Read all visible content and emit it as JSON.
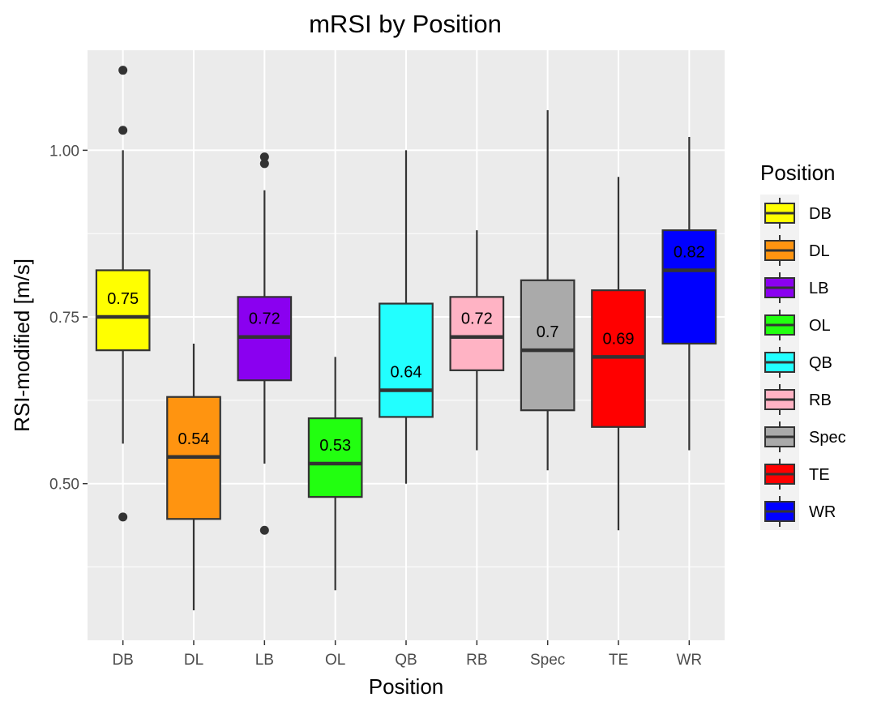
{
  "chart_data": {
    "type": "box",
    "title": "mRSI by Position",
    "xlabel": "Position",
    "ylabel": "RSI-modified [m/s]",
    "ylim": [
      0.265,
      1.15
    ],
    "yticks": [
      0.5,
      0.75,
      1.0
    ],
    "ytick_labels": [
      "0.50",
      "0.75",
      "1.00"
    ],
    "grid": true,
    "legend": {
      "title": "Position",
      "placement": "right"
    },
    "categories": [
      "DB",
      "DL",
      "LB",
      "OL",
      "QB",
      "RB",
      "Spec",
      "TE",
      "WR"
    ],
    "boxes": [
      {
        "name": "DB",
        "color": "#FFFF00",
        "whisker_low": 0.56,
        "q1": 0.7,
        "median": 0.75,
        "q3": 0.82,
        "whisker_high": 1.0,
        "outliers": [
          1.12,
          1.03,
          0.45
        ],
        "median_label": "0.75"
      },
      {
        "name": "DL",
        "color": "#FF9410",
        "whisker_low": 0.31,
        "q1": 0.447,
        "median": 0.54,
        "q3": 0.63,
        "whisker_high": 0.71,
        "outliers": [],
        "median_label": "0.54"
      },
      {
        "name": "LB",
        "color": "#8A00F0",
        "whisker_low": 0.53,
        "q1": 0.655,
        "median": 0.72,
        "q3": 0.78,
        "whisker_high": 0.94,
        "outliers": [
          0.99,
          0.98,
          0.43
        ],
        "median_label": "0.72"
      },
      {
        "name": "OL",
        "color": "#22FF10",
        "whisker_low": 0.34,
        "q1": 0.48,
        "median": 0.53,
        "q3": 0.598,
        "whisker_high": 0.69,
        "outliers": [],
        "median_label": "0.53"
      },
      {
        "name": "QB",
        "color": "#22FFFF",
        "whisker_low": 0.5,
        "q1": 0.6,
        "median": 0.64,
        "q3": 0.77,
        "whisker_high": 1.0,
        "outliers": [],
        "median_label": "0.64"
      },
      {
        "name": "RB",
        "color": "#FFB3C4",
        "whisker_low": 0.55,
        "q1": 0.67,
        "median": 0.72,
        "q3": 0.78,
        "whisker_high": 0.88,
        "outliers": [],
        "median_label": "0.72"
      },
      {
        "name": "Spec",
        "color": "#AAAAAA",
        "whisker_low": 0.52,
        "q1": 0.61,
        "median": 0.7,
        "q3": 0.805,
        "whisker_high": 1.06,
        "outliers": [],
        "median_label": "0.7"
      },
      {
        "name": "TE",
        "color": "#FF0000",
        "whisker_low": 0.43,
        "q1": 0.585,
        "median": 0.69,
        "q3": 0.79,
        "whisker_high": 0.96,
        "outliers": [],
        "median_label": "0.69"
      },
      {
        "name": "WR",
        "color": "#0000FF",
        "whisker_low": 0.55,
        "q1": 0.71,
        "median": 0.82,
        "q3": 0.88,
        "whisker_high": 1.02,
        "outliers": [],
        "median_label": "0.82"
      }
    ]
  }
}
